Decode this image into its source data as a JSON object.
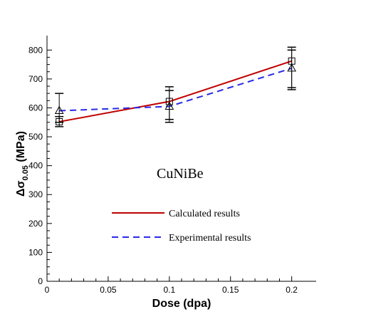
{
  "chart_data": {
    "type": "line",
    "title": "",
    "xlabel": "Dose (dpa)",
    "ylabel": {
      "prefix": "Δσ",
      "subscript": "0.05",
      "suffix": " (MPa)"
    },
    "xlim": [
      0,
      0.22
    ],
    "ylim": [
      0,
      850
    ],
    "x_ticks": [
      0,
      0.05,
      0.1,
      0.15,
      0.2
    ],
    "x_tick_labels": [
      "0",
      "0.05",
      "0.1",
      "0.15",
      "0.2"
    ],
    "y_ticks": [
      0,
      100,
      200,
      300,
      400,
      500,
      600,
      700,
      800
    ],
    "y_tick_labels": [
      "0",
      "100",
      "200",
      "300",
      "400",
      "500",
      "600",
      "700",
      "800"
    ],
    "annotation": "CuNiBe",
    "legend_placement": "center",
    "series": [
      {
        "name": "Calculated results",
        "color": "#c00000",
        "line_style": "solid",
        "marker": "square",
        "x": [
          0.01,
          0.1,
          0.2
        ],
        "y": [
          552,
          622,
          762
        ],
        "error_low": [
          535,
          550,
          663
        ],
        "error_high": [
          570,
          673,
          810
        ]
      },
      {
        "name": "Experimental results",
        "color": "#2a2ae6",
        "line_style": "dashed",
        "marker": "triangle",
        "x": [
          0.01,
          0.1,
          0.2
        ],
        "y": [
          590,
          605,
          737
        ],
        "error_low": [
          550,
          560,
          670
        ],
        "error_high": [
          650,
          660,
          800
        ]
      }
    ]
  }
}
